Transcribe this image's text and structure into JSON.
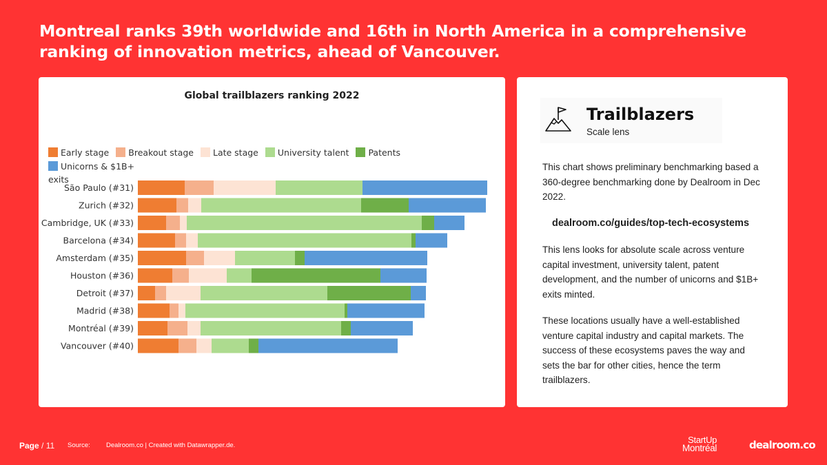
{
  "headline": "Montreal ranks 39th worldwide and 16th in North America in a comprehensive ranking of innovation metrics, ahead of Vancouver.",
  "legend": [
    {
      "label": "Early stage",
      "color": "#ef7d32"
    },
    {
      "label": "Breakout stage",
      "color": "#f5b08c"
    },
    {
      "label": "Late stage",
      "color": "#fde3d4"
    },
    {
      "label": "University talent",
      "color": "#addb8f"
    },
    {
      "label": "Patents",
      "color": "#6faf48"
    },
    {
      "label": "Unicorns & $1B+",
      "color": "#5b9ad8"
    }
  ],
  "legend_tail": "exits",
  "chart_data": {
    "type": "bar",
    "orientation": "horizontal",
    "stacked": true,
    "title": "Global trailblazers ranking 2022",
    "categories": [
      "São Paulo (#31)",
      "Zurich (#32)",
      "Cambridge, UK (#33)",
      "Barcelona (#34)",
      "Amsterdam (#35)",
      "Houston (#36)",
      "Detroit (#37)",
      "Madrid (#38)",
      "Montréal (#39)",
      "Vancouver (#40)"
    ],
    "series": [
      {
        "name": "Early stage",
        "values": [
          68,
          56,
          41,
          54,
          70,
          50,
          25,
          46,
          43,
          59
        ]
      },
      {
        "name": "Breakout stage",
        "values": [
          42,
          17,
          20,
          16,
          26,
          24,
          16,
          13,
          29,
          26
        ]
      },
      {
        "name": "Late stage",
        "values": [
          90,
          19,
          10,
          17,
          45,
          55,
          50,
          10,
          19,
          22
        ]
      },
      {
        "name": "University talent",
        "values": [
          126,
          232,
          341,
          310,
          87,
          36,
          184,
          231,
          204,
          54
        ]
      },
      {
        "name": "Patents",
        "values": [
          0,
          69,
          18,
          6,
          14,
          187,
          121,
          4,
          14,
          14
        ]
      },
      {
        "name": "Unicorns & $1B+ exits",
        "values": [
          181,
          112,
          44,
          46,
          178,
          67,
          22,
          112,
          90,
          202
        ]
      }
    ],
    "xlabel": "",
    "ylabel": "",
    "grid": false,
    "legend_position": "top"
  },
  "info": {
    "title": "Trailblazers",
    "subtitle": "Scale lens",
    "p1": "This chart shows preliminary benchmarking based a 360-degree benchmarking done by Dealroom in Dec 2022.",
    "link": "dealroom.co/guides/top-tech-ecosystems",
    "p2": "This lens looks for absolute scale across venture capital investment, university talent, patent development, and the number of unicorns and $1B+ exits minted.",
    "p3": "These locations usually have a well-established venture capital industry and capital markets. The success of these ecosystems paves the way and sets the bar for other cities, hence the term trailblazers."
  },
  "footer": {
    "page_label": "Page",
    "page_total": " / 11",
    "source_label": "Source:",
    "source_text": "Dealroom.co | Created with Datawrapper.de."
  },
  "logos": {
    "startup_line1": "StartUp",
    "startup_line2": "Montréal",
    "dealroom": "dealroom.co"
  }
}
